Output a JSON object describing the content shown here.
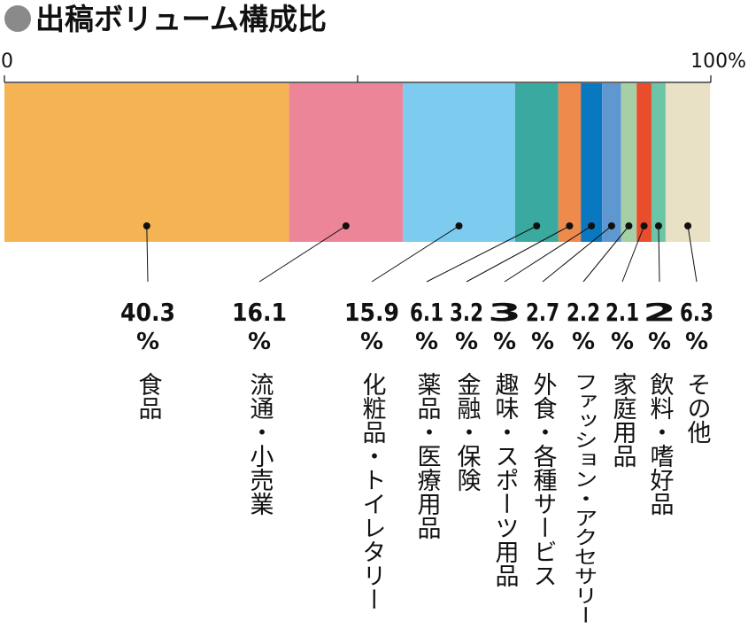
{
  "chart_data": {
    "type": "stacked-bar",
    "title": "出稿ボリューム構成比",
    "categories": [
      "食品",
      "流通・小売業",
      "化粧品・トイレタリー",
      "薬品・医療用品",
      "金融・保険",
      "趣味・スポーツ用品",
      "外食・各種サービス",
      "ファッション・アクセサリー",
      "家庭用品",
      "飲料・嗜好品",
      "その他"
    ],
    "values": [
      40.3,
      16.1,
      15.9,
      6.1,
      3.2,
      3.0,
      2.7,
      2.2,
      2.1,
      2.0,
      6.3
    ],
    "unit": "%",
    "colors": [
      "#f5b454",
      "#ec8598",
      "#7ecbf0",
      "#3aa99f",
      "#ee8a4c",
      "#0a78c0",
      "#5f97d1",
      "#a7cfa6",
      "#e94d2c",
      "#6cc5a6",
      "#e8e1c5"
    ],
    "xlim": [
      0,
      100
    ],
    "xticks": [
      0,
      {
        "value": 50,
        "label": null
      },
      {
        "value": 100,
        "label": "100%"
      }
    ]
  }
}
